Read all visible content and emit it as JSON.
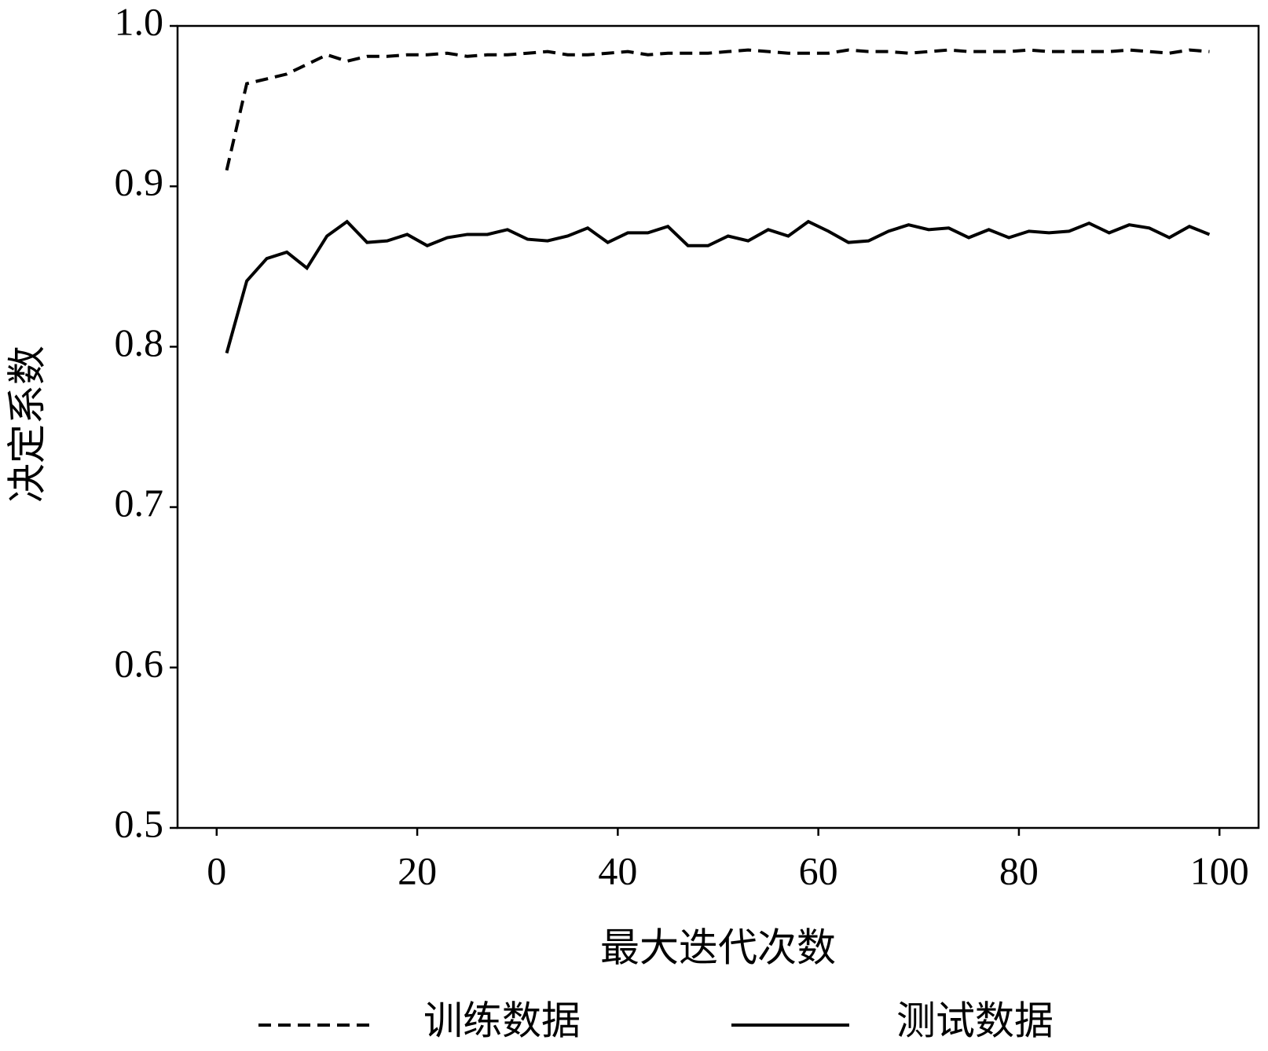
{
  "chart_data": {
    "type": "line",
    "x_label": "最大迭代次数",
    "y_label": "决定系数",
    "x": [
      1,
      3,
      5,
      7,
      9,
      11,
      13,
      15,
      17,
      19,
      21,
      23,
      25,
      27,
      29,
      31,
      33,
      35,
      37,
      39,
      41,
      43,
      45,
      47,
      49,
      51,
      53,
      55,
      57,
      59,
      61,
      63,
      65,
      67,
      69,
      71,
      73,
      75,
      77,
      79,
      81,
      83,
      85,
      87,
      89,
      91,
      93,
      95,
      97,
      99
    ],
    "series": [
      {
        "name": "训练数据",
        "color": "#000000",
        "dash": true,
        "values": [
          0.91,
          0.964,
          0.967,
          0.97,
          0.976,
          0.982,
          0.978,
          0.981,
          0.981,
          0.982,
          0.982,
          0.983,
          0.981,
          0.982,
          0.982,
          0.983,
          0.984,
          0.982,
          0.982,
          0.983,
          0.984,
          0.982,
          0.983,
          0.983,
          0.983,
          0.984,
          0.985,
          0.984,
          0.983,
          0.983,
          0.983,
          0.985,
          0.984,
          0.984,
          0.983,
          0.984,
          0.985,
          0.984,
          0.984,
          0.984,
          0.985,
          0.984,
          0.984,
          0.984,
          0.984,
          0.985,
          0.984,
          0.983,
          0.985,
          0.984
        ]
      },
      {
        "name": "测试数据",
        "color": "#000000",
        "dash": false,
        "values": [
          0.796,
          0.841,
          0.855,
          0.859,
          0.849,
          0.869,
          0.878,
          0.865,
          0.866,
          0.87,
          0.863,
          0.868,
          0.87,
          0.87,
          0.873,
          0.867,
          0.866,
          0.869,
          0.874,
          0.865,
          0.871,
          0.871,
          0.875,
          0.863,
          0.863,
          0.869,
          0.866,
          0.873,
          0.869,
          0.878,
          0.872,
          0.865,
          0.866,
          0.872,
          0.876,
          0.873,
          0.874,
          0.868,
          0.873,
          0.868,
          0.872,
          0.871,
          0.872,
          0.877,
          0.871,
          0.876,
          0.874,
          0.868,
          0.875,
          0.87
        ]
      }
    ],
    "xlim": [
      -3.9,
      103.9
    ],
    "ylim": [
      0.5,
      1.0
    ],
    "xticks": [
      0,
      20,
      40,
      60,
      80,
      100
    ],
    "yticks": [
      0.5,
      0.6,
      0.7,
      0.8,
      0.9,
      {
        "value": 1.0,
        "label": "1.0"
      }
    ],
    "legend": "bottom"
  }
}
